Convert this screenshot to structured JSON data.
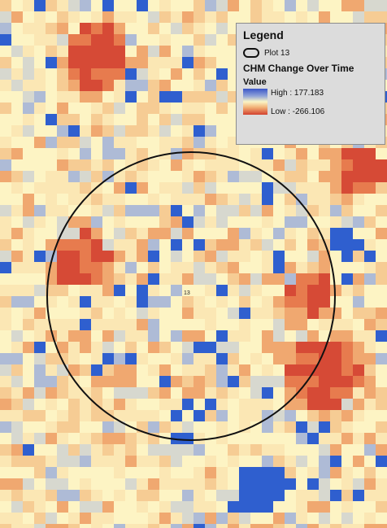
{
  "map": {
    "plot_label": "13",
    "palette": {
      "neg3": "#e77b4e",
      "neg2": "#f0a870",
      "neg1": "#f6cc94",
      "zero_a": "#fbe7b4",
      "zero_b": "#fdf4c4",
      "pos1": "#d7d8cf",
      "pos2": "#aebbd6",
      "high": "#2f5fcf",
      "low": "#d64a36"
    }
  },
  "legend": {
    "title": "Legend",
    "plot_item": "Plot 13",
    "layer_title": "CHM Change Over Time",
    "value_heading": "Value",
    "high_label": "High : 177.183",
    "low_label": "Low : -266.106"
  }
}
